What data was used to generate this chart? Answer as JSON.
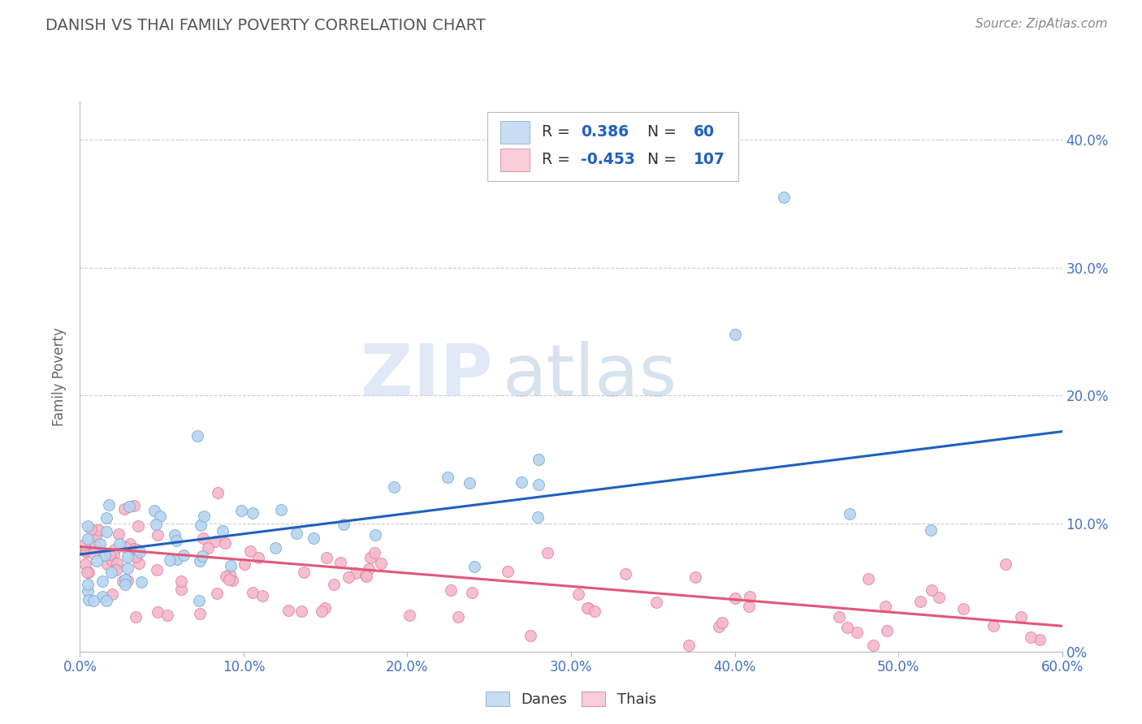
{
  "title": "DANISH VS THAI FAMILY POVERTY CORRELATION CHART",
  "source": "Source: ZipAtlas.com",
  "ylabel": "Family Poverty",
  "yticks_right": [
    0.0,
    0.1,
    0.2,
    0.3,
    0.4
  ],
  "ytick_labels_right": [
    "0%",
    "10.0%",
    "20.0%",
    "30.0%",
    "40.0%"
  ],
  "xticks": [
    0.0,
    0.1,
    0.2,
    0.3,
    0.4,
    0.5,
    0.6
  ],
  "xlim": [
    0.0,
    0.6
  ],
  "ylim": [
    0.0,
    0.43
  ],
  "danes_R": 0.386,
  "danes_N": 60,
  "thais_R": -0.453,
  "thais_N": 107,
  "danes_color": "#b8d4f0",
  "danes_edge": "#7aaed6",
  "thais_color": "#f4b8cc",
  "thais_edge": "#e08898",
  "danes_line_color": "#2060c0",
  "thais_line_color": "#e05878",
  "legend_blue_fill": "#c8dcf4",
  "legend_pink_fill": "#f8ccd8",
  "title_color": "#555555",
  "source_color": "#888888",
  "watermark_zip": "ZIP",
  "watermark_atlas": "atlas",
  "tick_color": "#4472c4",
  "grid_color": "#cccccc",
  "danes_line_start_y": 0.076,
  "danes_line_end_y": 0.172,
  "thais_line_start_y": 0.082,
  "thais_line_end_y": 0.02
}
